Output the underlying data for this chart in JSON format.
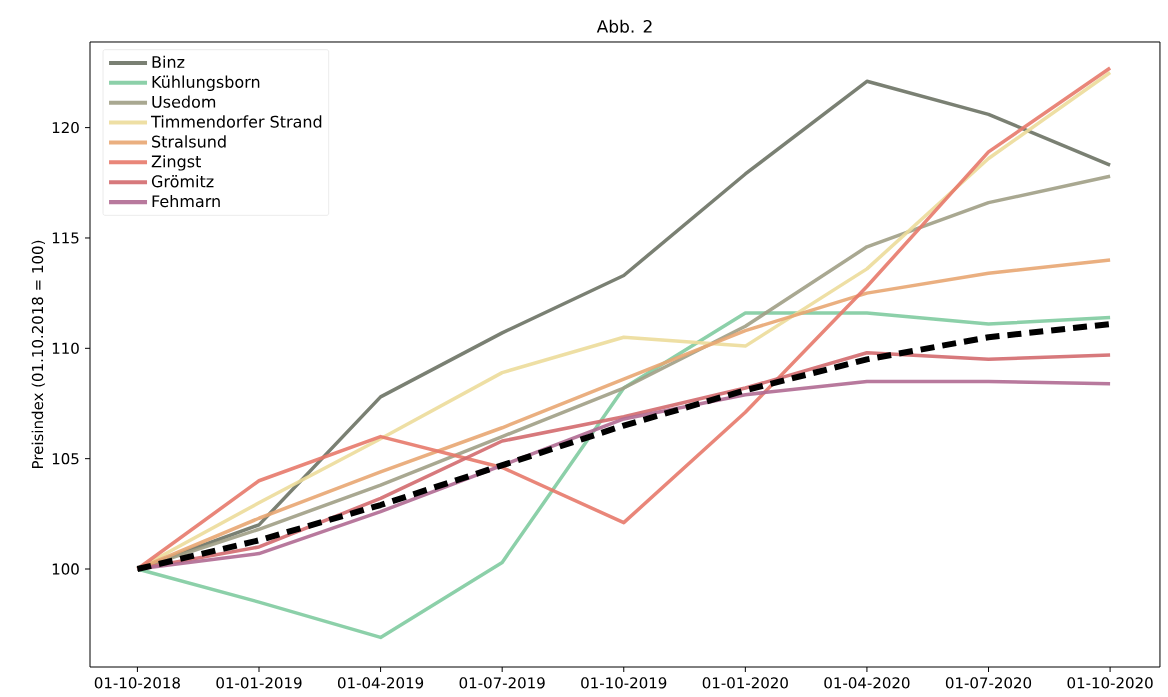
{
  "chart_data": {
    "type": "line",
    "title": "Abb. 2",
    "ylabel": "Preisindex (01.10.2018 = 100)",
    "categories": [
      "01-10-2018",
      "01-01-2019",
      "01-04-2019",
      "01-07-2019",
      "01-10-2019",
      "01-01-2020",
      "01-04-2020",
      "01-07-2020",
      "01-10-2020"
    ],
    "ylim": [
      95.56,
      123.88
    ],
    "yticks": [
      100,
      105,
      110,
      115,
      120
    ],
    "grid": false,
    "legend": "top left",
    "marker": "none",
    "line_style": "solid",
    "series": [
      {
        "name": "Binz",
        "color": "#6b7264",
        "values": [
          100,
          102.0,
          107.8,
          110.7,
          113.3,
          117.9,
          122.1,
          120.6,
          118.3
        ]
      },
      {
        "name": "Kühlungsborn",
        "color": "#80cba0",
        "values": [
          100,
          98.5,
          96.9,
          100.3,
          108.2,
          111.6,
          111.6,
          111.1,
          111.4
        ]
      },
      {
        "name": "Usedom",
        "color": "#a09f85",
        "values": [
          100,
          101.8,
          103.8,
          106.0,
          108.2,
          111.0,
          114.6,
          116.6,
          117.8
        ]
      },
      {
        "name": "Timmendorfer Strand",
        "color": "#ecdb9a",
        "values": [
          100,
          103.0,
          105.9,
          108.9,
          110.5,
          110.1,
          113.6,
          118.6,
          122.5
        ]
      },
      {
        "name": "Stralsund",
        "color": "#e8a672",
        "values": [
          100,
          102.3,
          104.4,
          106.4,
          108.6,
          110.8,
          112.5,
          113.4,
          114.0
        ]
      },
      {
        "name": "Zingst",
        "color": "#e7796a",
        "values": [
          100,
          104.0,
          106.0,
          104.6,
          102.1,
          107.1,
          112.8,
          118.9,
          122.7
        ]
      },
      {
        "name": "Grömitz",
        "color": "#d36a6e",
        "values": [
          100,
          101.0,
          103.2,
          105.8,
          106.9,
          108.2,
          109.8,
          109.5,
          109.7
        ]
      },
      {
        "name": "Fehmarn",
        "color": "#b06a92",
        "values": [
          100,
          100.7,
          102.6,
          104.7,
          106.8,
          107.9,
          108.5,
          108.5,
          108.4
        ]
      },
      {
        "color": "#000000",
        "line_style": "dashed",
        "values": [
          100,
          101.3,
          102.9,
          104.7,
          106.5,
          108.1,
          109.5,
          110.5,
          111.1
        ]
      }
    ]
  }
}
